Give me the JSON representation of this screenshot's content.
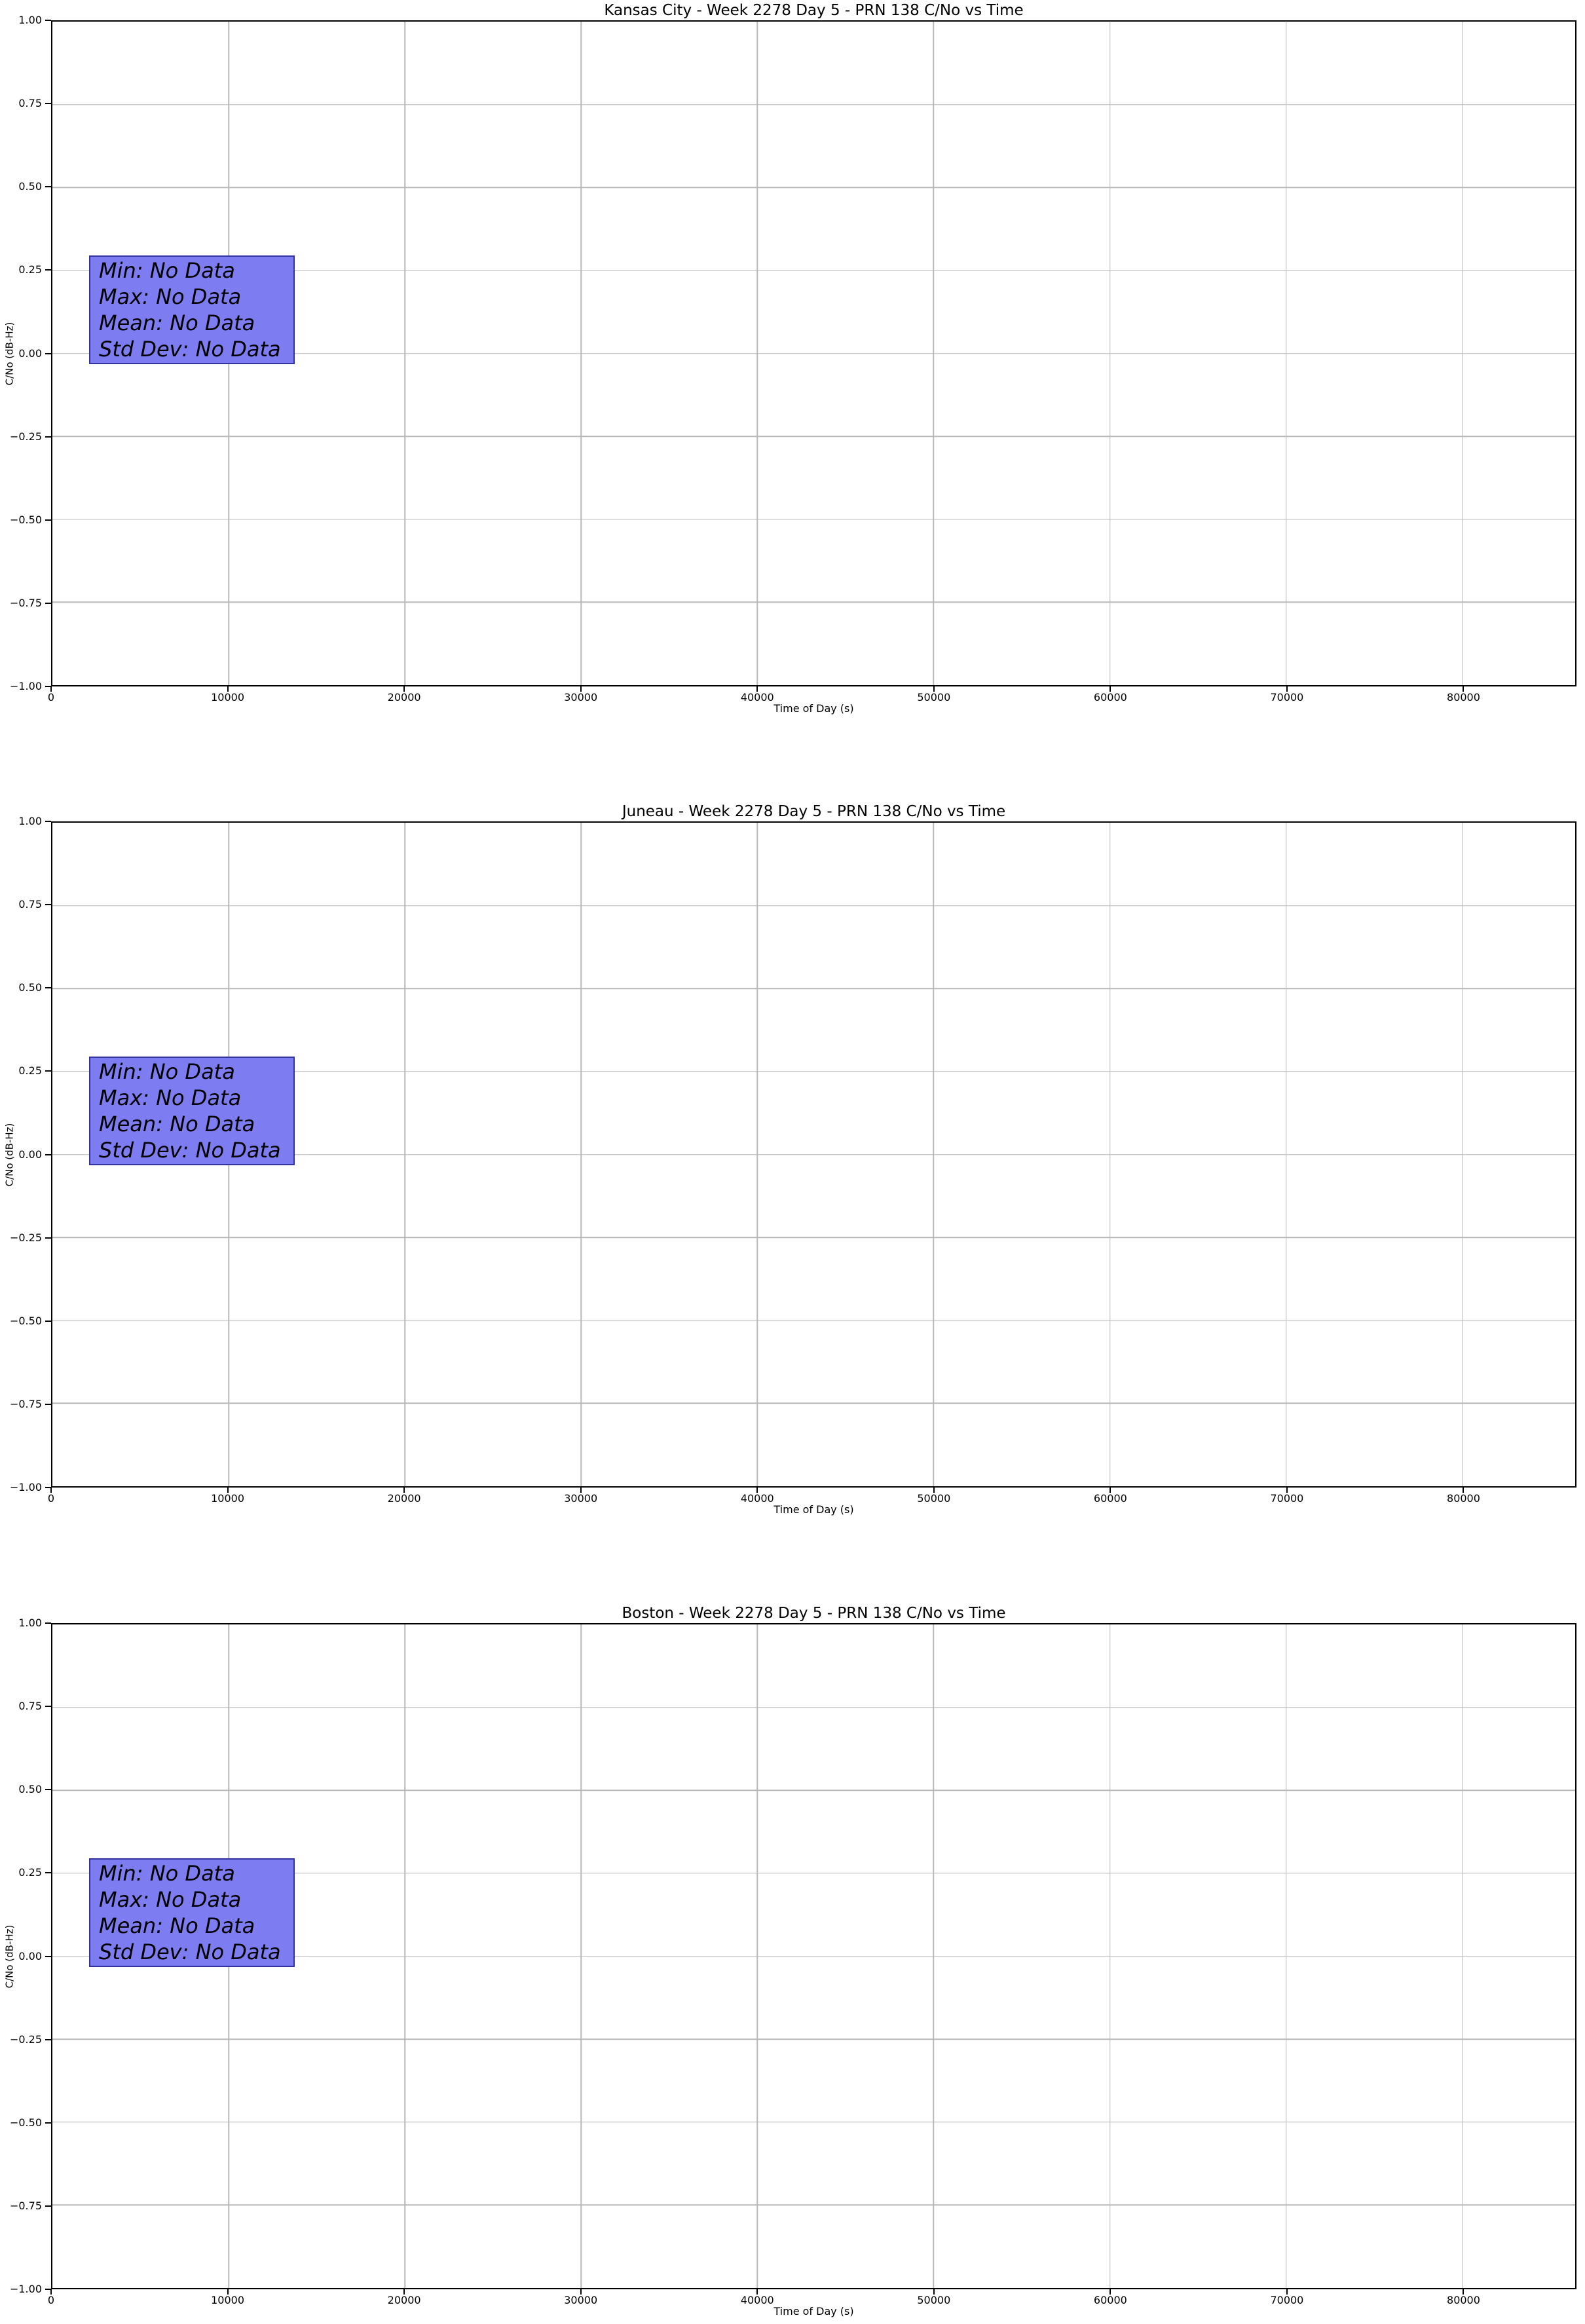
{
  "figure": {
    "background_color": "#ffffff",
    "text_color": "#000000",
    "grid_color": "#b8b8b8",
    "annotation_fill_color": "#7d7df1",
    "annotation_border_color": "#3232a0"
  },
  "chart_data": [
    {
      "type": "line",
      "title": "Kansas City - Week 2278 Day 5 - PRN 138 C/No vs Time",
      "xlabel": "Time of Day (s)",
      "ylabel": "C/No (dB-Hz)",
      "xlim": [
        0,
        86400
      ],
      "ylim": [
        -1.0,
        1.0
      ],
      "grid": true,
      "series": [],
      "xticks": [
        0,
        10000,
        20000,
        30000,
        40000,
        50000,
        60000,
        70000,
        80000
      ],
      "xtick_labels": [
        "0",
        "10000",
        "20000",
        "30000",
        "40000",
        "50000",
        "60000",
        "70000",
        "80000"
      ],
      "yticks": [
        1.0,
        0.75,
        0.5,
        0.25,
        0.0,
        -0.25,
        -0.5,
        -0.75,
        -1.0
      ],
      "ytick_labels": [
        "1.00",
        "0.75",
        "0.50",
        "0.25",
        "0.00",
        "−0.25",
        "−0.50",
        "−0.75",
        "−1.00"
      ],
      "annotation_lines": [
        "Min: No Data",
        "Max: No Data",
        "Mean: No Data",
        "Std Dev: No Data"
      ]
    },
    {
      "type": "line",
      "title": "Juneau - Week 2278 Day 5 - PRN 138 C/No vs Time",
      "xlabel": "Time of Day (s)",
      "ylabel": "C/No (dB-Hz)",
      "xlim": [
        0,
        86400
      ],
      "ylim": [
        -1.0,
        1.0
      ],
      "grid": true,
      "series": [],
      "xticks": [
        0,
        10000,
        20000,
        30000,
        40000,
        50000,
        60000,
        70000,
        80000
      ],
      "xtick_labels": [
        "0",
        "10000",
        "20000",
        "30000",
        "40000",
        "50000",
        "60000",
        "70000",
        "80000"
      ],
      "yticks": [
        1.0,
        0.75,
        0.5,
        0.25,
        0.0,
        -0.25,
        -0.5,
        -0.75,
        -1.0
      ],
      "ytick_labels": [
        "1.00",
        "0.75",
        "0.50",
        "0.25",
        "0.00",
        "−0.25",
        "−0.50",
        "−0.75",
        "−1.00"
      ],
      "annotation_lines": [
        "Min: No Data",
        "Max: No Data",
        "Mean: No Data",
        "Std Dev: No Data"
      ]
    },
    {
      "type": "line",
      "title": "Boston - Week 2278 Day 5 - PRN 138 C/No vs Time",
      "xlabel": "Time of Day (s)",
      "ylabel": "C/No (dB-Hz)",
      "xlim": [
        0,
        86400
      ],
      "ylim": [
        -1.0,
        1.0
      ],
      "grid": true,
      "series": [],
      "xticks": [
        0,
        10000,
        20000,
        30000,
        40000,
        50000,
        60000,
        70000,
        80000
      ],
      "xtick_labels": [
        "0",
        "10000",
        "20000",
        "30000",
        "40000",
        "50000",
        "60000",
        "70000",
        "80000"
      ],
      "yticks": [
        1.0,
        0.75,
        0.5,
        0.25,
        0.0,
        -0.25,
        -0.5,
        -0.75,
        -1.0
      ],
      "ytick_labels": [
        "1.00",
        "0.75",
        "0.50",
        "0.25",
        "0.00",
        "−0.25",
        "−0.50",
        "−0.75",
        "−1.00"
      ],
      "annotation_lines": [
        "Min: No Data",
        "Max: No Data",
        "Mean: No Data",
        "Std Dev: No Data"
      ]
    }
  ]
}
